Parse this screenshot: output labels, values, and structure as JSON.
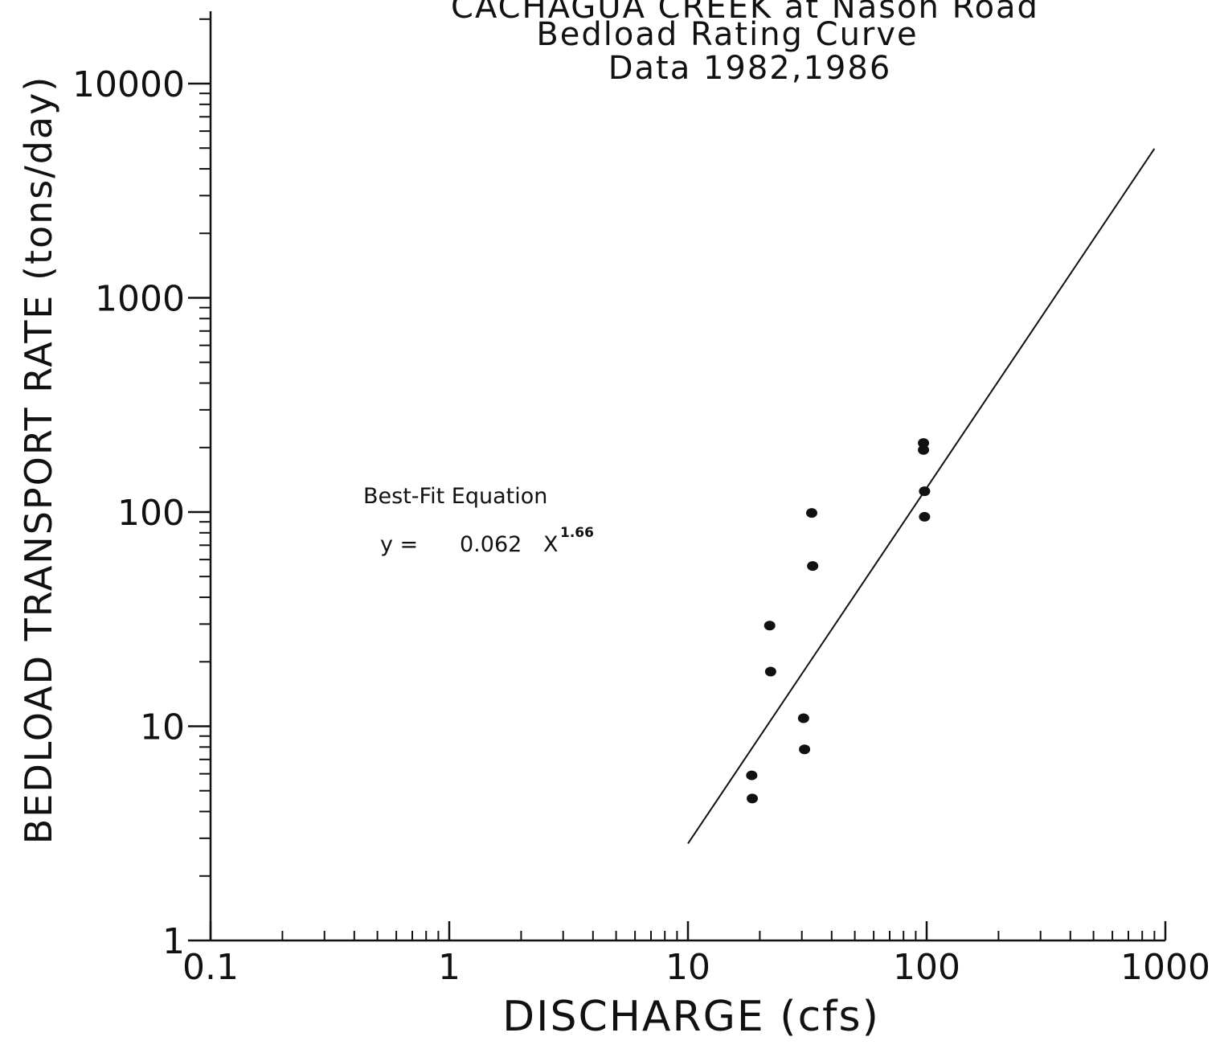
{
  "chart_data": {
    "type": "scatter",
    "title_lines": [
      "CACHAGUA CREEK at Nason Road",
      "Bedload Rating Curve",
      "Data 1982,1986"
    ],
    "xlabel": "DISCHARGE (cfs)",
    "ylabel": "BEDLOAD TRANSPORT RATE (tons/day)",
    "xscale": "log",
    "yscale": "log",
    "xlim": [
      0.1,
      1000
    ],
    "ylim": [
      1,
      20000
    ],
    "x_ticks": [
      {
        "value": 0.1,
        "label": "0.1"
      },
      {
        "value": 1,
        "label": "1"
      },
      {
        "value": 10,
        "label": "10"
      },
      {
        "value": 100,
        "label": "100"
      },
      {
        "value": 1000,
        "label": "1000"
      }
    ],
    "y_ticks": [
      {
        "value": 1,
        "label": "1"
      },
      {
        "value": 10,
        "label": "10"
      },
      {
        "value": 100,
        "label": "100"
      },
      {
        "value": 1000,
        "label": "1000"
      },
      {
        "value": 10000,
        "label": "10000"
      }
    ],
    "grid": false,
    "points": [
      {
        "x": 18.5,
        "y": 5.9
      },
      {
        "x": 18.6,
        "y": 4.6
      },
      {
        "x": 22.0,
        "y": 29.5
      },
      {
        "x": 22.2,
        "y": 18.0
      },
      {
        "x": 30.5,
        "y": 10.9
      },
      {
        "x": 30.8,
        "y": 7.8
      },
      {
        "x": 33.0,
        "y": 99
      },
      {
        "x": 33.3,
        "y": 56
      },
      {
        "x": 97,
        "y": 210
      },
      {
        "x": 97,
        "y": 195
      },
      {
        "x": 98,
        "y": 125
      },
      {
        "x": 98,
        "y": 95
      }
    ],
    "fit": {
      "coefficient": 0.062,
      "exponent": 1.66,
      "x_range": [
        10,
        900
      ],
      "equation_title": "Best-Fit Equation",
      "equation_lhs": "y =",
      "equation_coef": "0.062",
      "equation_var": "X",
      "equation_exp": "1.66"
    },
    "colors": {
      "ink": "#111111",
      "background": "#ffffff"
    }
  }
}
